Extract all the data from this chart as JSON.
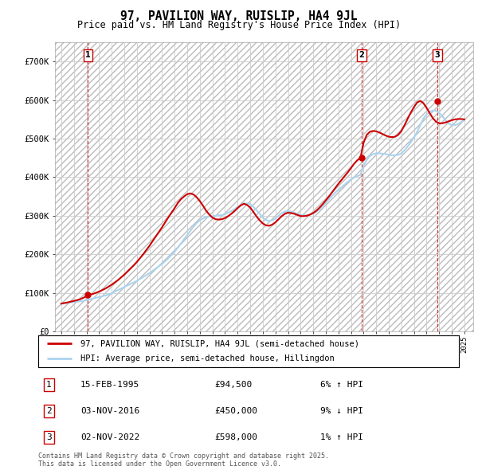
{
  "title": "97, PAVILION WAY, RUISLIP, HA4 9JL",
  "subtitle": "Price paid vs. HM Land Registry's House Price Index (HPI)",
  "ylim": [
    0,
    750000
  ],
  "yticks": [
    0,
    100000,
    200000,
    300000,
    400000,
    500000,
    600000,
    700000
  ],
  "ytick_labels": [
    "£0",
    "£100K",
    "£200K",
    "£300K",
    "£400K",
    "£500K",
    "£600K",
    "£700K"
  ],
  "xlim_start": 1992.5,
  "xlim_end": 2025.7,
  "sale_dates": [
    1995.12,
    2016.84,
    2022.84
  ],
  "sale_prices": [
    94500,
    450000,
    598000
  ],
  "sale_labels": [
    "1",
    "2",
    "3"
  ],
  "hpi_line_color": "#aad4f0",
  "price_line_color": "#cc0000",
  "vline_color": "#cc0000",
  "background_color": "#ffffff",
  "grid_color": "#cccccc",
  "legend_line1": "97, PAVILION WAY, RUISLIP, HA4 9JL (semi-detached house)",
  "legend_line2": "HPI: Average price, semi-detached house, Hillingdon",
  "table_rows": [
    {
      "num": "1",
      "date": "15-FEB-1995",
      "price": "£94,500",
      "hpi": "6% ↑ HPI"
    },
    {
      "num": "2",
      "date": "03-NOV-2016",
      "price": "£450,000",
      "hpi": "9% ↓ HPI"
    },
    {
      "num": "3",
      "date": "02-NOV-2022",
      "price": "£598,000",
      "hpi": "1% ↑ HPI"
    }
  ],
  "footnote": "Contains HM Land Registry data © Crown copyright and database right 2025.\nThis data is licensed under the Open Government Licence v3.0.",
  "hpi_years": [
    1993.0,
    1993.25,
    1993.5,
    1993.75,
    1994.0,
    1994.25,
    1994.5,
    1994.75,
    1995.0,
    1995.25,
    1995.5,
    1995.75,
    1996.0,
    1996.25,
    1996.5,
    1996.75,
    1997.0,
    1997.25,
    1997.5,
    1997.75,
    1998.0,
    1998.25,
    1998.5,
    1998.75,
    1999.0,
    1999.25,
    1999.5,
    1999.75,
    2000.0,
    2000.25,
    2000.5,
    2000.75,
    2001.0,
    2001.25,
    2001.5,
    2001.75,
    2002.0,
    2002.25,
    2002.5,
    2002.75,
    2003.0,
    2003.25,
    2003.5,
    2003.75,
    2004.0,
    2004.25,
    2004.5,
    2004.75,
    2005.0,
    2005.25,
    2005.5,
    2005.75,
    2006.0,
    2006.25,
    2006.5,
    2006.75,
    2007.0,
    2007.25,
    2007.5,
    2007.75,
    2008.0,
    2008.25,
    2008.5,
    2008.75,
    2009.0,
    2009.25,
    2009.5,
    2009.75,
    2010.0,
    2010.25,
    2010.5,
    2010.75,
    2011.0,
    2011.25,
    2011.5,
    2011.75,
    2012.0,
    2012.25,
    2012.5,
    2012.75,
    2013.0,
    2013.25,
    2013.5,
    2013.75,
    2014.0,
    2014.25,
    2014.5,
    2014.75,
    2015.0,
    2015.25,
    2015.5,
    2015.75,
    2016.0,
    2016.25,
    2016.5,
    2016.75,
    2017.0,
    2017.25,
    2017.5,
    2017.75,
    2018.0,
    2018.25,
    2018.5,
    2018.75,
    2019.0,
    2019.25,
    2019.5,
    2019.75,
    2020.0,
    2020.25,
    2020.5,
    2020.75,
    2021.0,
    2021.25,
    2021.5,
    2021.75,
    2022.0,
    2022.25,
    2022.5,
    2022.75,
    2023.0,
    2023.25,
    2023.5,
    2023.75,
    2024.0,
    2024.25,
    2024.5,
    2024.75,
    2025.0
  ],
  "hpi_values": [
    72000,
    73000,
    74000,
    75000,
    76000,
    77000,
    78000,
    79000,
    81000,
    83000,
    85000,
    87000,
    89000,
    91000,
    93000,
    96000,
    99000,
    103000,
    107000,
    111000,
    115000,
    119000,
    123000,
    127000,
    131000,
    136000,
    141000,
    146000,
    151000,
    157000,
    163000,
    169000,
    175000,
    182000,
    190000,
    198000,
    207000,
    217000,
    228000,
    239000,
    250000,
    261000,
    272000,
    281000,
    288000,
    293000,
    296000,
    298000,
    299000,
    300000,
    301000,
    302000,
    304000,
    308000,
    312000,
    317000,
    323000,
    328000,
    332000,
    332000,
    330000,
    323000,
    314000,
    305000,
    295000,
    289000,
    286000,
    288000,
    293000,
    300000,
    307000,
    311000,
    312000,
    311000,
    308000,
    305000,
    302000,
    301000,
    301000,
    303000,
    306000,
    311000,
    317000,
    325000,
    334000,
    343000,
    352000,
    360000,
    367000,
    374000,
    381000,
    388000,
    394000,
    399000,
    403000,
    406000,
    430000,
    445000,
    455000,
    460000,
    462000,
    462000,
    461000,
    460000,
    458000,
    457000,
    457000,
    458000,
    462000,
    470000,
    480000,
    491000,
    503000,
    518000,
    535000,
    552000,
    563000,
    570000,
    573000,
    572000,
    567000,
    558000,
    548000,
    539000,
    535000,
    535000,
    538000,
    543000,
    550000
  ],
  "price_years": [
    1993.0,
    1993.25,
    1993.5,
    1993.75,
    1994.0,
    1994.25,
    1994.5,
    1994.75,
    1995.0,
    1995.25,
    1995.5,
    1995.75,
    1996.0,
    1996.25,
    1996.5,
    1996.75,
    1997.0,
    1997.25,
    1997.5,
    1997.75,
    1998.0,
    1998.25,
    1998.5,
    1998.75,
    1999.0,
    1999.25,
    1999.5,
    1999.75,
    2000.0,
    2000.25,
    2000.5,
    2000.75,
    2001.0,
    2001.25,
    2001.5,
    2001.75,
    2002.0,
    2002.25,
    2002.5,
    2002.75,
    2003.0,
    2003.25,
    2003.5,
    2003.75,
    2004.0,
    2004.25,
    2004.5,
    2004.75,
    2005.0,
    2005.25,
    2005.5,
    2005.75,
    2006.0,
    2006.25,
    2006.5,
    2006.75,
    2007.0,
    2007.25,
    2007.5,
    2007.75,
    2008.0,
    2008.25,
    2008.5,
    2008.75,
    2009.0,
    2009.25,
    2009.5,
    2009.75,
    2010.0,
    2010.25,
    2010.5,
    2010.75,
    2011.0,
    2011.25,
    2011.5,
    2011.75,
    2012.0,
    2012.25,
    2012.5,
    2012.75,
    2013.0,
    2013.25,
    2013.5,
    2013.75,
    2014.0,
    2014.25,
    2014.5,
    2014.75,
    2015.0,
    2015.25,
    2015.5,
    2015.75,
    2016.0,
    2016.25,
    2016.5,
    2016.75,
    2017.0,
    2017.25,
    2017.5,
    2017.75,
    2018.0,
    2018.25,
    2018.5,
    2018.75,
    2019.0,
    2019.25,
    2019.5,
    2019.75,
    2020.0,
    2020.25,
    2020.5,
    2020.75,
    2021.0,
    2021.25,
    2021.5,
    2021.75,
    2022.0,
    2022.25,
    2022.5,
    2022.75,
    2023.0,
    2023.25,
    2023.5,
    2023.75,
    2024.0,
    2024.25,
    2024.5,
    2024.75,
    2025.0
  ],
  "price_values": [
    72000,
    73500,
    75000,
    77000,
    79000,
    81000,
    83500,
    87000,
    91000,
    94500,
    97000,
    100000,
    103000,
    107000,
    111000,
    116000,
    121000,
    127000,
    133000,
    140000,
    147000,
    155000,
    163000,
    171000,
    180000,
    190000,
    200000,
    211000,
    222000,
    234000,
    246000,
    258000,
    270000,
    283000,
    296000,
    308000,
    320000,
    333000,
    343000,
    350000,
    356000,
    358000,
    355000,
    348000,
    338000,
    326000,
    313000,
    303000,
    295000,
    291000,
    290000,
    291000,
    294000,
    299000,
    305000,
    312000,
    320000,
    327000,
    331000,
    328000,
    321000,
    310000,
    298000,
    288000,
    280000,
    275000,
    274000,
    277000,
    283000,
    291000,
    299000,
    305000,
    308000,
    307000,
    305000,
    302000,
    299000,
    299000,
    300000,
    303000,
    307000,
    313000,
    321000,
    330000,
    340000,
    350000,
    361000,
    372000,
    383000,
    393000,
    403000,
    413000,
    424000,
    435000,
    444000,
    450000,
    490000,
    510000,
    518000,
    520000,
    519000,
    516000,
    512000,
    508000,
    505000,
    504000,
    505000,
    510000,
    520000,
    535000,
    552000,
    568000,
    582000,
    594000,
    598000,
    592000,
    580000,
    566000,
    553000,
    544000,
    540000,
    540000,
    542000,
    545000,
    548000,
    550000,
    551000,
    551000,
    550000
  ]
}
